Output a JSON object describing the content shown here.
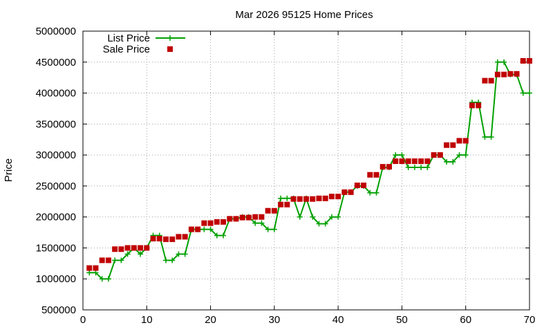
{
  "chart_data": {
    "type": "line",
    "title": "Mar 2026 95125 Home Prices",
    "xlabel": "",
    "ylabel": "Price",
    "xlim": [
      0,
      70
    ],
    "ylim": [
      500000,
      5000000
    ],
    "xticks": [
      "0",
      "10",
      "20",
      "30",
      "40",
      "50",
      "60",
      "70"
    ],
    "yticks": [
      "500000",
      "1000000",
      "1500000",
      "2000000",
      "2500000",
      "3000000",
      "3500000",
      "4000000",
      "4500000",
      "5000000"
    ],
    "grid": true,
    "legend_position": "top-left",
    "series": [
      {
        "name": "List Price",
        "style": "line-with-plus-markers",
        "color": "#00a000",
        "x": [
          1,
          2,
          3,
          4,
          5,
          6,
          7,
          8,
          9,
          10,
          11,
          12,
          13,
          14,
          15,
          16,
          17,
          18,
          19,
          20,
          21,
          22,
          23,
          24,
          25,
          26,
          27,
          28,
          29,
          30,
          31,
          32,
          33,
          34,
          35,
          36,
          37,
          38,
          39,
          40,
          41,
          42,
          43,
          44,
          45,
          46,
          47,
          48,
          49,
          50,
          51,
          52,
          53,
          54,
          55,
          56,
          57,
          58,
          59,
          60,
          61,
          62,
          63,
          64,
          65,
          66,
          67,
          68,
          69,
          70
        ],
        "values": [
          1100000,
          1100000,
          1000000,
          1000000,
          1300000,
          1300000,
          1400000,
          1500000,
          1400000,
          1500000,
          1700000,
          1700000,
          1300000,
          1300000,
          1400000,
          1400000,
          1800000,
          1800000,
          1800000,
          1800000,
          1700000,
          1700000,
          1970000,
          1970000,
          2000000,
          2000000,
          1900000,
          1900000,
          1800000,
          1800000,
          2300000,
          2300000,
          2300000,
          2000000,
          2300000,
          2000000,
          1890000,
          1890000,
          2000000,
          2000000,
          2400000,
          2400000,
          2500000,
          2500000,
          2390000,
          2390000,
          2800000,
          2800000,
          3000000,
          3000000,
          2800000,
          2800000,
          2800000,
          2800000,
          3000000,
          3000000,
          2890000,
          2890000,
          3000000,
          3000000,
          3850000,
          3850000,
          3290000,
          3290000,
          4500000,
          4500000,
          4300000,
          4300000,
          4000000,
          4000000
        ]
      },
      {
        "name": "Sale Price",
        "style": "square-markers",
        "color": "#c00000",
        "x": [
          1,
          2,
          3,
          4,
          5,
          6,
          7,
          8,
          9,
          10,
          11,
          12,
          13,
          14,
          15,
          16,
          17,
          18,
          19,
          20,
          21,
          22,
          23,
          24,
          25,
          26,
          27,
          28,
          29,
          30,
          31,
          32,
          33,
          34,
          35,
          36,
          37,
          38,
          39,
          40,
          41,
          42,
          43,
          44,
          45,
          46,
          47,
          48,
          49,
          50,
          51,
          52,
          53,
          54,
          55,
          56,
          57,
          58,
          59,
          60,
          61,
          62,
          63,
          64,
          65,
          66,
          67,
          68,
          69,
          70
        ],
        "values": [
          1175000,
          1175000,
          1300000,
          1300000,
          1480000,
          1480000,
          1500000,
          1500000,
          1500000,
          1500000,
          1650000,
          1650000,
          1640000,
          1640000,
          1680000,
          1680000,
          1800000,
          1800000,
          1900000,
          1900000,
          1920000,
          1920000,
          1970000,
          1970000,
          1990000,
          1990000,
          2000000,
          2000000,
          2100000,
          2100000,
          2200000,
          2200000,
          2290000,
          2290000,
          2290000,
          2290000,
          2300000,
          2300000,
          2330000,
          2330000,
          2400000,
          2400000,
          2510000,
          2510000,
          2680000,
          2680000,
          2810000,
          2810000,
          2900000,
          2900000,
          2900000,
          2900000,
          2900000,
          2900000,
          3000000,
          3000000,
          3160000,
          3160000,
          3230000,
          3230000,
          3800000,
          3800000,
          4200000,
          4200000,
          4300000,
          4300000,
          4310000,
          4310000,
          4520000,
          4520000
        ]
      }
    ]
  }
}
